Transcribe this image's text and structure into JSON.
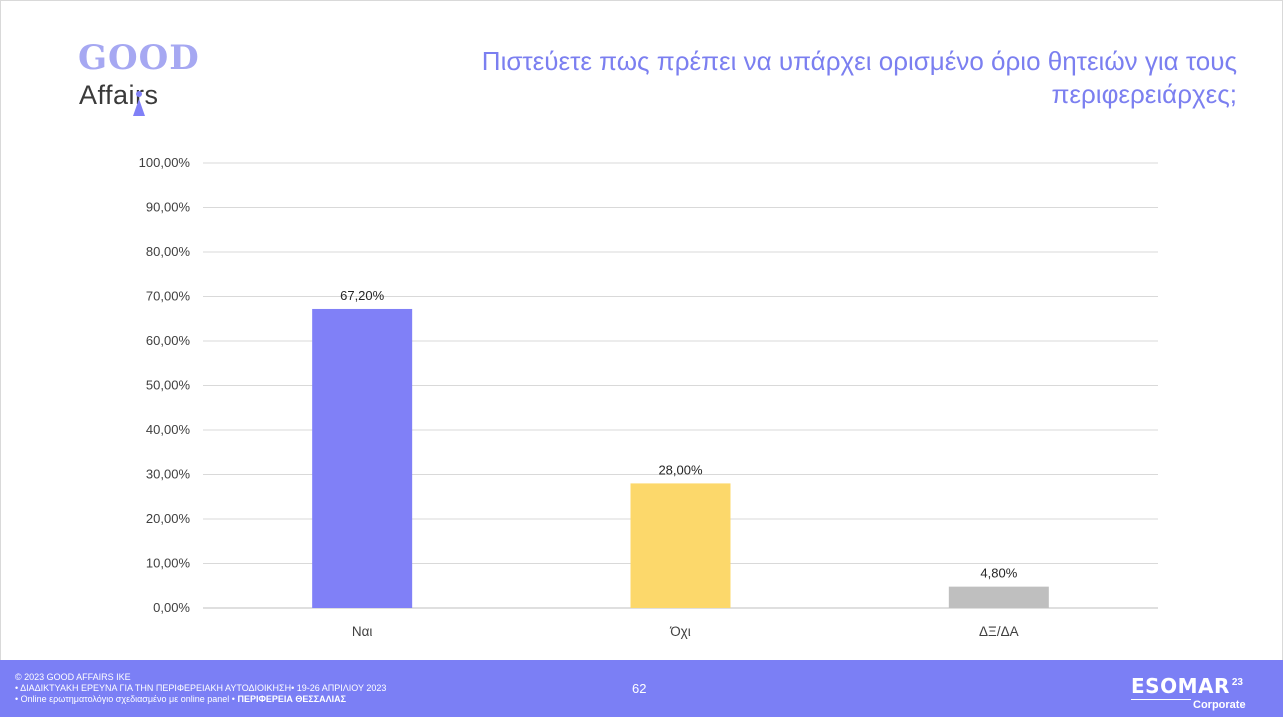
{
  "logo": {
    "line1": "GOOD",
    "line2": "Affairs"
  },
  "title": "Πιστεύετε πως πρέπει να υπάρχει ορισμένο όριο θητειών για τους περιφερειάρχες;",
  "colors": {
    "accent": "#7b7ff5",
    "title": "#7b7ff0",
    "bar_yes": "#8080f7",
    "bar_no": "#fcd86b",
    "bar_dk": "#bfbfbf"
  },
  "chart_data": {
    "type": "bar",
    "categories": [
      "Ναι",
      "Όχι",
      "ΔΞ/ΔΑ"
    ],
    "values": [
      67.2,
      28.0,
      4.8
    ],
    "data_labels": [
      "67,20%",
      "28,00%",
      "4,80%"
    ],
    "colors": [
      "#8080f7",
      "#fcd86b",
      "#bfbfbf"
    ],
    "ylim": [
      0,
      100
    ],
    "yticks": [
      "0,00%",
      "10,00%",
      "20,00%",
      "30,00%",
      "40,00%",
      "50,00%",
      "60,00%",
      "70,00%",
      "80,00%",
      "90,00%",
      "100,00%"
    ],
    "grid": true,
    "title": "",
    "xlabel": "",
    "ylabel": ""
  },
  "footer": {
    "copyright": "© 2023 GOOD AFFAIRS IKE",
    "survey_line": "• ΔΙΑΔΙΚΤΥΑΚΗ ΕΡΕΥΝΑ  ΓΙΑ ΤΗΝ ΠΕΡΙΦΕΡΕΙΑΚΗ ΑΥΤΟΔΙΟΙΚΗΣΗ• 19-26 ΑΠΡΙΛΙΟΥ 2023",
    "method_line": "• Online ερωτηματολόγιο σχεδιασμένο με online panel  • ",
    "region": "ΠΕΡΙΦΕΡΕΙΑ ΘΕΣΣΑΛΙΑΣ",
    "page_number": "62",
    "esomar": "ESOMAR",
    "esomar_sup": "23",
    "esomar_sub": "Corporate"
  }
}
